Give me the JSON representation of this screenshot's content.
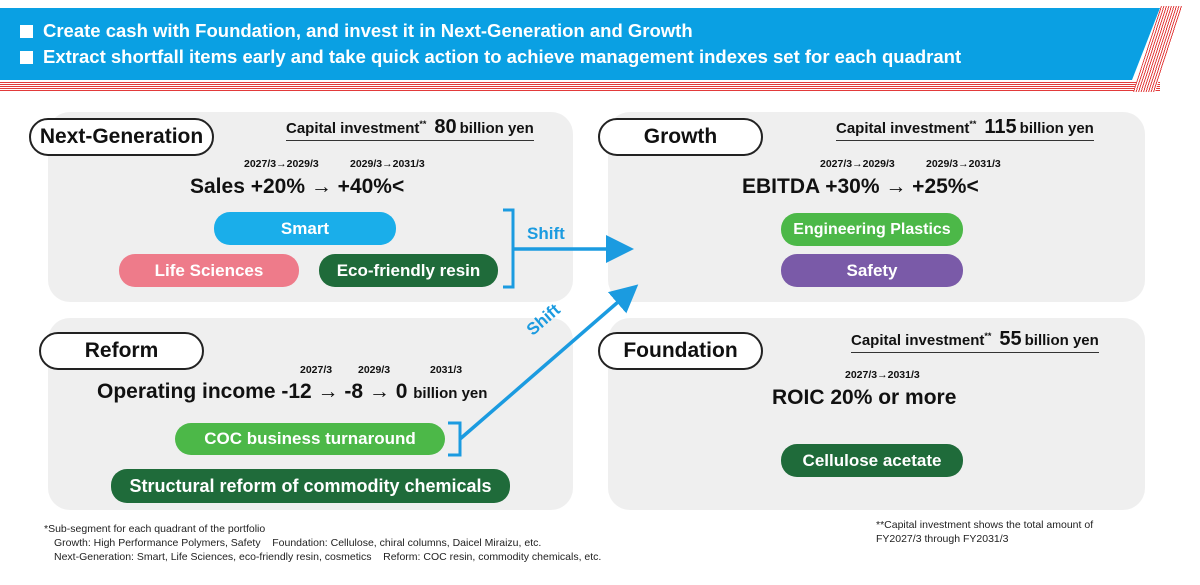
{
  "header": {
    "line1": "Create cash with Foundation, and invest it in Next-Generation and Growth",
    "line2": "Extract shortfall items early and take quick action to achieve management indexes set for each quadrant"
  },
  "quadrants": {
    "next_generation": {
      "label": "Next-Generation",
      "capinv_label": "Capital investment",
      "capinv_mark": "**",
      "capinv_value": "80",
      "capinv_unit": "billion yen",
      "period1": "2027/3→2029/3",
      "period2": "2029/3→2031/3",
      "metric": "Sales +20% → +40%<",
      "items": [
        "Smart",
        "Life Sciences",
        "Eco-friendly resin"
      ]
    },
    "growth": {
      "label": "Growth",
      "capinv_label": "Capital investment",
      "capinv_mark": "**",
      "capinv_value": "115",
      "capinv_unit": "billion yen",
      "period1": "2027/3→2029/3",
      "period2": "2029/3→2031/3",
      "metric": "EBITDA +30% → +25%<",
      "items": [
        "Engineering Plastics",
        "Safety"
      ]
    },
    "reform": {
      "label": "Reform",
      "year1": "2027/3",
      "year2": "2029/3",
      "year3": "2031/3",
      "metric": "Operating income -12 → -8 → 0",
      "metric_unit": "billion yen",
      "items": [
        "COC business turnaround",
        "Structural reform of commodity chemicals"
      ]
    },
    "foundation": {
      "label": "Foundation",
      "capinv_label": "Capital investment",
      "capinv_mark": "**",
      "capinv_value": "55",
      "capinv_unit": "billion yen",
      "period": "2027/3→2031/3",
      "metric": "ROIC 20% or more",
      "items": [
        "Cellulose acetate"
      ]
    }
  },
  "arrows": {
    "shift1": "Shift",
    "shift2": "Shift"
  },
  "footnotes": {
    "sub1": "*Sub-segment for each quadrant of the portfolio",
    "sub2": "Growth: High Performance Polymers, Safety    Foundation: Cellulose, chiral columns, Daicel Miraizu, etc.",
    "sub3": "Next-Generation: Smart, Life Sciences, eco-friendly resin, cosmetics    Reform: COC resin, commodity chemicals, etc.",
    "cap1": "**Capital investment shows the total amount of",
    "cap2": "FY2027/3 through FY2031/3"
  },
  "colors": {
    "banner": "#0aa0e3",
    "arrow": "#1b9be0",
    "smart": "#1aaeea",
    "life_sciences": "#ee7b8a",
    "dark_green": "#1f6b3a",
    "green": "#4cb848",
    "safety": "#7a5aa8"
  }
}
